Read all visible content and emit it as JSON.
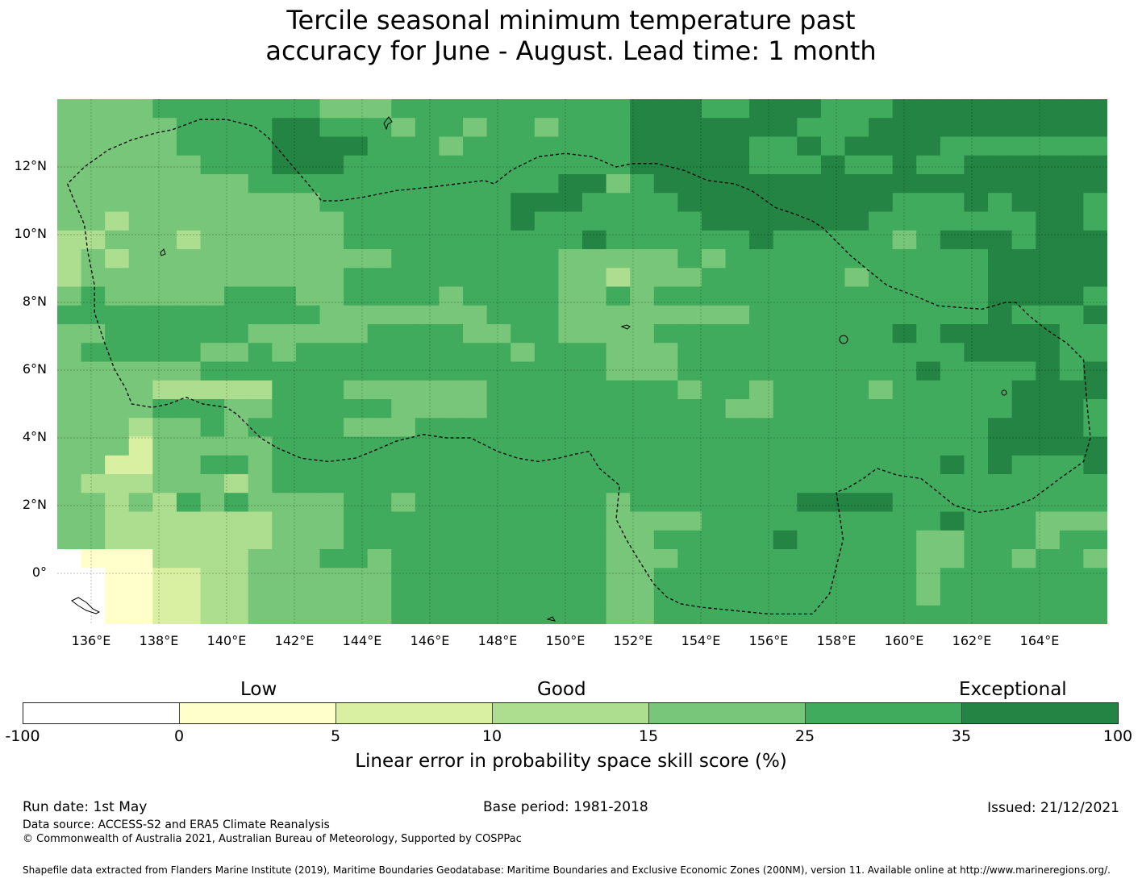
{
  "title": {
    "line1": "Tercile seasonal minimum temperature past",
    "line2": "accuracy for June - August. Lead time: 1 month"
  },
  "map": {
    "lat_labels": [
      "12°N",
      "10°N",
      "8°N",
      "6°N",
      "4°N",
      "2°N",
      "0°"
    ],
    "lon_labels": [
      "136°E",
      "138°E",
      "140°E",
      "142°E",
      "144°E",
      "146°E",
      "148°E",
      "150°E",
      "152°E",
      "154°E",
      "156°E",
      "158°E",
      "160°E",
      "162°E",
      "164°E"
    ],
    "extent": {
      "lon_min": 135.0,
      "lon_max": 166.0,
      "lat_min": -1.5,
      "lat_max": 14.0
    },
    "grid_resolution_deg": 0.833,
    "cell_value_categories": "0=-100..0, 1=0..5, 2=5..10, 3=10..15, 4=15..25, 5=25..35, 6=35..100",
    "category_grid_north_to_south": [
      "44445555555444555555555566655666555666666666",
      "44444555566555455455455566666665556666666666",
      "44444555566665554555555566666556566665555555",
      "44444455566655555555555566666555655655666666",
      "44444444555555555555566456666666666666666666",
      "44444444444555555556665555666666666555656665",
      "44344444444455555556555555566666665555555665",
      "33444344444455555555556555555655555456665666",
      "34344444444444555555544444545555555555566666",
      "34444444444455555555544344455555545555566666",
      "45444445554455554555544545555555555555566665",
      "55555555555444444455544444444555555555565556",
      "44555555444445555445544445555555555656666655",
      "45555544545555555554555444555555555555666655",
      "44444455555555555555555444555555555565555656",
      "44443333355544444455555555455455554555556666",
      "44445554455555444455555555554455555555556665",
      "44434454555544455555555555555555555555566665",
      "44424444455555555555555555555555555555566666",
      "44224455455555555555555555555555555556565556",
      "43334443455555555555555555555555555555555555",
      "44343545444455455555555455555556666555555555",
      "44333333344455555555555444455555555556555444",
      "44333333344455555555555445555565555544555455",
      "01113333444554555555555444555555555544554554",
      "00112233444444555555555445555555555545555555",
      "00112233444444555555555445555555555545555555",
      "00112233444444555555555445555555555555555555"
    ],
    "eez_boundary_lonlat": [
      [
        135.3,
        11.5
      ],
      [
        135.5,
        11.0
      ],
      [
        135.8,
        10.3
      ],
      [
        135.9,
        9.5
      ],
      [
        136.1,
        8.5
      ],
      [
        136.1,
        7.7
      ],
      [
        136.4,
        6.8
      ],
      [
        136.7,
        6.0
      ],
      [
        137.0,
        5.5
      ],
      [
        137.2,
        5.0
      ],
      [
        137.8,
        4.9
      ],
      [
        138.3,
        5.0
      ],
      [
        138.8,
        5.2
      ],
      [
        139.3,
        5.0
      ],
      [
        140.0,
        4.9
      ],
      [
        140.3,
        4.7
      ],
      [
        140.6,
        4.4
      ],
      [
        141.0,
        4.0
      ],
      [
        141.5,
        3.7
      ],
      [
        142.2,
        3.4
      ],
      [
        143.0,
        3.3
      ],
      [
        143.8,
        3.4
      ],
      [
        144.3,
        3.6
      ],
      [
        145.0,
        3.9
      ],
      [
        145.8,
        4.1
      ],
      [
        146.5,
        4.0
      ],
      [
        147.2,
        4.0
      ],
      [
        147.6,
        3.8
      ],
      [
        148.0,
        3.6
      ],
      [
        148.6,
        3.4
      ],
      [
        149.2,
        3.3
      ],
      [
        149.8,
        3.4
      ],
      [
        150.2,
        3.5
      ],
      [
        150.7,
        3.6
      ],
      [
        151.0,
        3.1
      ],
      [
        151.6,
        2.6
      ],
      [
        151.5,
        1.6
      ],
      [
        151.8,
        1.0
      ],
      [
        152.1,
        0.5
      ],
      [
        152.6,
        -0.3
      ],
      [
        153.0,
        -0.7
      ],
      [
        153.4,
        -0.9
      ],
      [
        154.0,
        -1.0
      ],
      [
        155.0,
        -1.1
      ],
      [
        156.0,
        -1.2
      ],
      [
        157.3,
        -1.2
      ],
      [
        157.8,
        -0.6
      ],
      [
        158.0,
        0.2
      ],
      [
        158.2,
        1.0
      ],
      [
        158.0,
        2.4
      ],
      [
        158.3,
        2.5
      ],
      [
        158.8,
        2.8
      ],
      [
        159.2,
        3.1
      ],
      [
        159.8,
        2.9
      ],
      [
        160.5,
        2.8
      ],
      [
        161.0,
        2.4
      ],
      [
        161.5,
        2.0
      ],
      [
        162.2,
        1.8
      ],
      [
        163.0,
        1.9
      ],
      [
        163.8,
        2.2
      ],
      [
        164.6,
        2.8
      ],
      [
        165.3,
        3.3
      ],
      [
        165.5,
        4.0
      ],
      [
        165.4,
        5.0
      ],
      [
        165.3,
        6.3
      ],
      [
        164.8,
        6.8
      ],
      [
        164.2,
        7.2
      ],
      [
        163.7,
        7.6
      ],
      [
        163.3,
        8.0
      ],
      [
        163.0,
        8.0
      ],
      [
        162.3,
        7.8
      ],
      [
        161.0,
        7.9
      ],
      [
        160.3,
        8.2
      ],
      [
        159.5,
        8.5
      ],
      [
        159.0,
        8.9
      ],
      [
        158.4,
        9.4
      ],
      [
        158.0,
        9.8
      ],
      [
        157.6,
        10.2
      ],
      [
        157.3,
        10.4
      ],
      [
        156.8,
        10.6
      ],
      [
        156.2,
        10.8
      ],
      [
        155.5,
        11.3
      ],
      [
        155.0,
        11.5
      ],
      [
        154.2,
        11.6
      ],
      [
        153.5,
        11.9
      ],
      [
        152.7,
        12.1
      ],
      [
        152.0,
        12.1
      ],
      [
        151.5,
        12.0
      ],
      [
        150.8,
        12.3
      ],
      [
        150.0,
        12.4
      ],
      [
        149.2,
        12.3
      ],
      [
        148.4,
        11.9
      ],
      [
        147.9,
        11.5
      ],
      [
        147.6,
        11.6
      ],
      [
        146.8,
        11.5
      ],
      [
        146.0,
        11.4
      ],
      [
        145.0,
        11.3
      ],
      [
        144.0,
        11.1
      ],
      [
        143.3,
        11.0
      ],
      [
        142.8,
        11.0
      ],
      [
        142.4,
        11.5
      ],
      [
        141.8,
        12.2
      ],
      [
        141.2,
        12.9
      ],
      [
        140.8,
        13.2
      ],
      [
        140.0,
        13.4
      ],
      [
        139.2,
        13.4
      ],
      [
        138.4,
        13.1
      ],
      [
        137.9,
        13.0
      ],
      [
        137.2,
        12.8
      ],
      [
        136.5,
        12.5
      ],
      [
        135.8,
        12.0
      ],
      [
        135.3,
        11.5
      ]
    ]
  },
  "legend": {
    "category_labels": [
      "Low",
      "Good",
      "Exceptional"
    ],
    "tick_labels": [
      "-100",
      "0",
      "5",
      "10",
      "15",
      "25",
      "35",
      "100"
    ],
    "colors": [
      "#ffffff",
      "#ffffcc",
      "#d9f0a3",
      "#addd8e",
      "#78c679",
      "#41ab5d",
      "#238443"
    ],
    "title": "Linear error in probability space skill score (%)"
  },
  "footer": {
    "run_date": "Run date: 1st May",
    "base_period": "Base period: 1981-2018",
    "issued": "Issued: 21/12/2021",
    "data_source": "Data source: ACCESS-S2 and ERA5 Climate Reanalysis",
    "copyright": "© Commonwealth of Australia 2021, Australian Bureau of Meteorology, Supported by COSPPac",
    "shapefile": "Shapefile data extracted from Flanders Marine Institute (2019), Maritime Boundaries Geodatabase: Maritime Boundaries and Exclusive Economic Zones (200NM), version 11. Available online at http://www.marineregions.org/."
  }
}
